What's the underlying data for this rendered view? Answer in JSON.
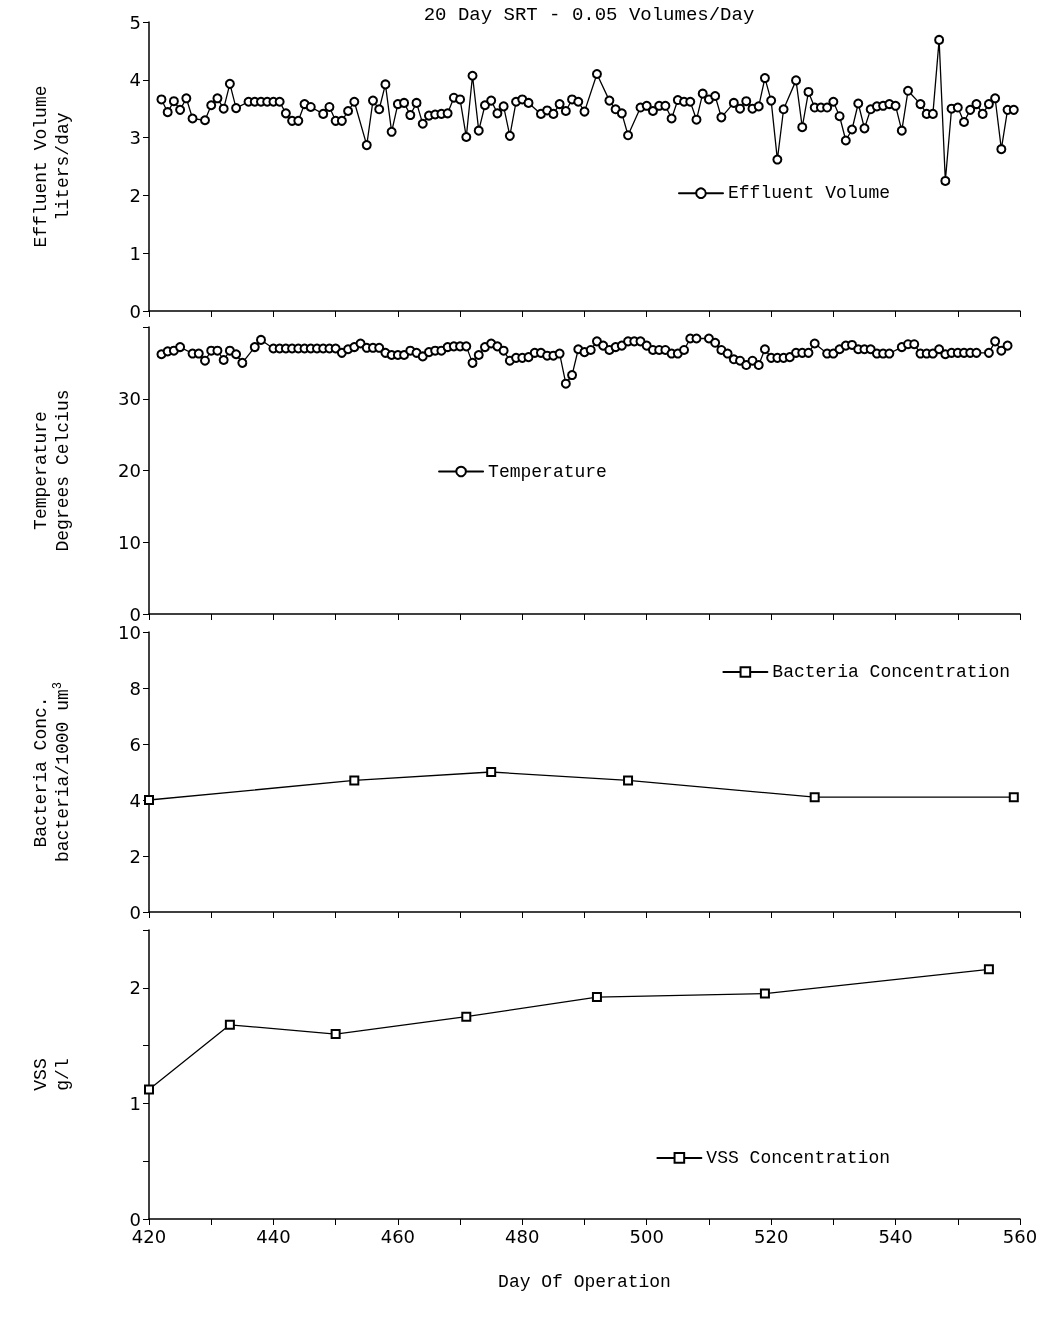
{
  "chart_data": [
    {
      "type": "line",
      "title": "20 Day SRT - 0.05 Volumes/Day",
      "ylabel": "Effluent Volume\nliters/day",
      "xlim": [
        420,
        560
      ],
      "xticks": [
        420,
        430,
        440,
        450,
        460,
        470,
        480,
        490,
        500,
        510,
        520,
        530,
        540,
        550,
        560
      ],
      "ylim": [
        0,
        5
      ],
      "yticks": [
        0,
        1,
        2,
        3,
        4,
        5
      ],
      "tick_labels": "y",
      "grid": false,
      "legend": "right",
      "marker": "circle",
      "line_style": "solid",
      "x": [
        422,
        423,
        424,
        425,
        426,
        427,
        429,
        430,
        431,
        432,
        433,
        434,
        436,
        437,
        438,
        439,
        440,
        441,
        442,
        443,
        444,
        445,
        446,
        448,
        449,
        450,
        451,
        452,
        453,
        455,
        456,
        457,
        458,
        459,
        460,
        461,
        462,
        463,
        464,
        465,
        466,
        467,
        468,
        469,
        470,
        471,
        472,
        473,
        474,
        475,
        476,
        477,
        478,
        479,
        480,
        481,
        483,
        484,
        485,
        486,
        487,
        488,
        489,
        490,
        492,
        494,
        495,
        496,
        497,
        499,
        500,
        501,
        502,
        503,
        504,
        505,
        506,
        507,
        508,
        509,
        510,
        511,
        512,
        514,
        515,
        516,
        517,
        518,
        519,
        520,
        521,
        522,
        524,
        525,
        526,
        527,
        528,
        529,
        530,
        531,
        532,
        533,
        534,
        535,
        536,
        537,
        538,
        539,
        540,
        541,
        542,
        544,
        545,
        546,
        547,
        548,
        549,
        550,
        551,
        552,
        553,
        554,
        555,
        556,
        557,
        558,
        559
      ],
      "series": [
        {
          "name": "Effluent Volume",
          "color": "#000000",
          "values": [
            3.66,
            3.44,
            3.63,
            3.48,
            3.68,
            3.33,
            3.3,
            3.56,
            3.68,
            3.5,
            3.93,
            3.51,
            3.62,
            3.62,
            3.62,
            3.62,
            3.62,
            3.62,
            3.42,
            3.29,
            3.29,
            3.58,
            3.53,
            3.41,
            3.53,
            3.29,
            3.29,
            3.46,
            3.62,
            2.87,
            3.64,
            3.49,
            3.92,
            3.1,
            3.58,
            3.6,
            3.39,
            3.6,
            3.24,
            3.38,
            3.4,
            3.41,
            3.42,
            3.69,
            3.66,
            3.01,
            4.07,
            3.12,
            3.56,
            3.64,
            3.42,
            3.54,
            3.03,
            3.62,
            3.66,
            3.6,
            3.41,
            3.47,
            3.41,
            3.58,
            3.46,
            3.66,
            3.62,
            3.45,
            4.1,
            3.64,
            3.49,
            3.42,
            3.04,
            3.52,
            3.55,
            3.46,
            3.55,
            3.55,
            3.33,
            3.65,
            3.62,
            3.62,
            3.31,
            3.76,
            3.66,
            3.72,
            3.35,
            3.6,
            3.5,
            3.63,
            3.5,
            3.54,
            4.03,
            3.64,
            2.62,
            3.49,
            3.99,
            3.18,
            3.79,
            3.52,
            3.52,
            3.52,
            3.62,
            3.37,
            2.95,
            3.14,
            3.59,
            3.16,
            3.49,
            3.54,
            3.55,
            3.58,
            3.55,
            3.12,
            3.81,
            3.58,
            3.41,
            3.41,
            4.69,
            2.25,
            3.5,
            3.52,
            3.27,
            3.48,
            3.58,
            3.41,
            3.58,
            3.68,
            2.8,
            3.48,
            3.48
          ]
        }
      ]
    },
    {
      "type": "line",
      "ylabel": "Temperature\nDegrees Celcius",
      "xlim": [
        420,
        560
      ],
      "xticks": [
        420,
        430,
        440,
        450,
        460,
        470,
        480,
        490,
        500,
        510,
        520,
        530,
        540,
        550,
        560
      ],
      "ylim": [
        0,
        40
      ],
      "yticks": [
        0,
        10,
        20,
        30,
        {
          "value": 40,
          "label": null
        }
      ],
      "tick_labels": "y",
      "grid": false,
      "legend": "center",
      "marker": "circle",
      "line_style": "solid",
      "x": [
        422,
        423,
        424,
        425,
        427,
        428,
        429,
        430,
        431,
        432,
        433,
        434,
        435,
        437,
        438,
        440,
        441,
        442,
        443,
        444,
        445,
        446,
        447,
        448,
        449,
        450,
        451,
        452,
        453,
        454,
        455,
        456,
        457,
        458,
        459,
        460,
        461,
        462,
        463,
        464,
        465,
        466,
        467,
        468,
        469,
        470,
        471,
        472,
        473,
        474,
        475,
        476,
        477,
        478,
        479,
        480,
        481,
        482,
        483,
        484,
        485,
        486,
        487,
        488,
        489,
        490,
        491,
        492,
        493,
        494,
        495,
        496,
        497,
        498,
        499,
        500,
        501,
        502,
        503,
        504,
        505,
        506,
        507,
        508,
        510,
        511,
        512,
        513,
        514,
        515,
        516,
        517,
        518,
        519,
        520,
        521,
        522,
        523,
        524,
        525,
        526,
        527,
        529,
        530,
        531,
        532,
        533,
        534,
        535,
        536,
        537,
        538,
        539,
        541,
        542,
        543,
        544,
        545,
        546,
        547,
        548,
        549,
        550,
        551,
        552,
        553,
        555,
        556,
        557,
        558
      ],
      "series": [
        {
          "name": "Temperature",
          "color": "#000000",
          "values": [
            36.2,
            36.6,
            36.7,
            37.2,
            36.3,
            36.3,
            35.3,
            36.7,
            36.7,
            35.4,
            36.7,
            36.2,
            35.0,
            37.2,
            38.2,
            37.0,
            37.0,
            37.0,
            37.0,
            37.0,
            37.0,
            37.0,
            37.0,
            37.0,
            37.0,
            37.0,
            36.4,
            36.9,
            37.2,
            37.7,
            37.1,
            37.1,
            37.1,
            36.4,
            36.1,
            36.1,
            36.1,
            36.7,
            36.4,
            35.9,
            36.5,
            36.7,
            36.7,
            37.2,
            37.3,
            37.3,
            37.3,
            35.0,
            36.1,
            37.2,
            37.7,
            37.3,
            36.7,
            35.3,
            35.7,
            35.7,
            35.8,
            36.4,
            36.4,
            36.0,
            36.0,
            36.3,
            32.1,
            33.3,
            36.9,
            36.5,
            36.8,
            38.0,
            37.4,
            36.8,
            37.2,
            37.4,
            38.0,
            38.0,
            38.0,
            37.4,
            36.8,
            36.8,
            36.8,
            36.3,
            36.3,
            36.8,
            38.4,
            38.4,
            38.4,
            37.8,
            36.8,
            36.3,
            35.5,
            35.3,
            34.7,
            35.3,
            34.7,
            36.9,
            35.7,
            35.7,
            35.7,
            35.8,
            36.4,
            36.4,
            36.4,
            37.7,
            36.3,
            36.3,
            36.9,
            37.4,
            37.5,
            36.9,
            36.9,
            36.9,
            36.3,
            36.3,
            36.3,
            37.2,
            37.6,
            37.6,
            36.3,
            36.3,
            36.3,
            36.9,
            36.2,
            36.4,
            36.4,
            36.4,
            36.4,
            36.4,
            36.4,
            38.0,
            36.7,
            37.4
          ]
        }
      ]
    },
    {
      "type": "line",
      "ylabel": "Bacteria Conc.\nbacteria/1000 um$^{3}$",
      "xlim": [
        420,
        560
      ],
      "xticks": [
        420,
        430,
        440,
        450,
        460,
        470,
        480,
        490,
        500,
        510,
        520,
        530,
        540,
        550,
        560
      ],
      "ylim": [
        0,
        10
      ],
      "yticks": [
        0,
        2,
        4,
        6,
        8,
        10
      ],
      "tick_labels": "y",
      "grid": false,
      "legend": "top right",
      "marker": "square",
      "line_style": "solid",
      "x": [
        420,
        453,
        475,
        497,
        527,
        559
      ],
      "series": [
        {
          "name": "Bacteria Concentration",
          "color": "#000000",
          "values": [
            4.0,
            4.7,
            5.0,
            4.7,
            4.1,
            4.1
          ]
        }
      ]
    },
    {
      "type": "line",
      "xlabel": "Day Of Operation",
      "ylabel": "VSS\ng/l",
      "xlim": [
        420,
        560
      ],
      "xticks": [
        420,
        {
          "value": 430,
          "label": null
        },
        440,
        {
          "value": 450,
          "label": null
        },
        460,
        {
          "value": 470,
          "label": null
        },
        480,
        {
          "value": 490,
          "label": null
        },
        500,
        {
          "value": 510,
          "label": null
        },
        520,
        {
          "value": 530,
          "label": null
        },
        540,
        {
          "value": 550,
          "label": null
        },
        560
      ],
      "ylim": [
        0,
        2.5
      ],
      "yticks": [
        0,
        {
          "value": 0.5,
          "label": null
        },
        1,
        {
          "value": 1.5,
          "label": null
        },
        2,
        {
          "value": 2.5,
          "label": null
        }
      ],
      "grid": false,
      "legend": "right",
      "marker": "square",
      "line_style": "solid",
      "x": [
        420,
        433,
        450,
        471,
        492,
        519,
        555
      ],
      "series": [
        {
          "name": "VSS Concentration",
          "color": "#000000",
          "values": [
            1.12,
            1.68,
            1.6,
            1.75,
            1.92,
            1.95,
            2.16
          ]
        }
      ]
    }
  ]
}
